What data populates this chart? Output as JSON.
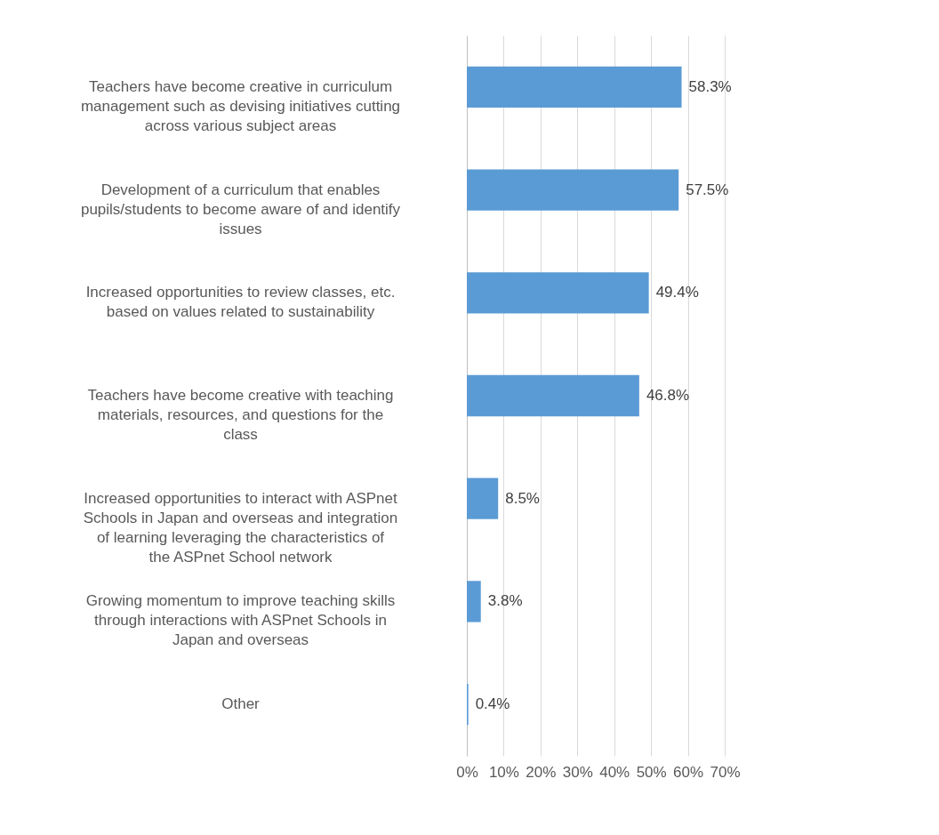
{
  "chart_data": {
    "type": "bar",
    "orientation": "horizontal",
    "categories": [
      "Teachers have become creative in curriculum management such as devising initiatives cutting across various subject areas",
      "Development of a curriculum that enables pupils/students to become aware of and identify issues",
      "Increased opportunities to review classes, etc. based on values related to sustainability",
      "Teachers have become creative with teaching materials, resources, and questions for the class",
      "Increased opportunities to interact with ASPnet Schools in Japan and overseas and integration of learning leveraging the characteristics of the ASPnet School network",
      "Growing momentum to improve teaching skills through interactions with ASPnet Schools in Japan and overseas",
      "Other"
    ],
    "values": [
      58.3,
      57.5,
      49.4,
      46.8,
      8.5,
      3.8,
      0.4
    ],
    "value_labels": [
      "58.3%",
      "57.5%",
      "49.4%",
      "46.8%",
      "8.5%",
      "3.8%",
      "0.4%"
    ],
    "color": "#5b9bd5",
    "xlim": [
      0,
      70
    ],
    "xticks": [
      {
        "value": 0,
        "label": "0%"
      },
      {
        "value": 10,
        "label": "10%"
      },
      {
        "value": 20,
        "label": "20%"
      },
      {
        "value": 30,
        "label": "30%"
      },
      {
        "value": 40,
        "label": "40%"
      },
      {
        "value": 50,
        "label": "50%"
      },
      {
        "value": 60,
        "label": "60%"
      },
      {
        "value": 70,
        "label": "70%"
      }
    ],
    "grid": "x"
  }
}
